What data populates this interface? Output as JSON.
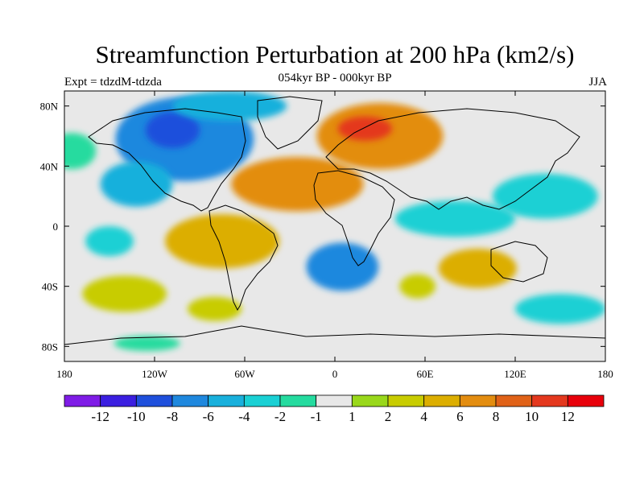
{
  "chart_data": {
    "type": "heatmap",
    "title": "Streamfunction Perturbation at 200 hPa (km2/s)",
    "subtitle": "054kyr BP - 000kyr BP",
    "left_label": "Expt = tdzdM-tdzda",
    "right_label": "JJA",
    "x_range": [
      -180,
      180
    ],
    "y_range": [
      -90,
      90
    ],
    "x_ticks": [
      {
        "label": "180",
        "value": -180
      },
      {
        "label": "120W",
        "value": -120
      },
      {
        "label": "60W",
        "value": -60
      },
      {
        "label": "0",
        "value": 0
      },
      {
        "label": "60E",
        "value": 60
      },
      {
        "label": "120E",
        "value": 120
      },
      {
        "label": "180",
        "value": 180
      }
    ],
    "y_ticks": [
      {
        "label": "80N",
        "value": 80
      },
      {
        "label": "40N",
        "value": 40
      },
      {
        "label": "0",
        "value": 0
      },
      {
        "label": "40S",
        "value": -40
      },
      {
        "label": "80S",
        "value": -80
      }
    ],
    "colorbar": {
      "levels": [
        "-12",
        "-10",
        "-8",
        "-6",
        "-4",
        "-2",
        "-1",
        "1",
        "2",
        "4",
        "6",
        "8",
        "10",
        "12"
      ],
      "colors": [
        "#7f1ce6",
        "#3b1fe0",
        "#1f50dc",
        "#1f88de",
        "#19b0dc",
        "#1ad0d4",
        "#25db9f",
        "#e8e8e8",
        "#99d81b",
        "#c8cc00",
        "#dcae00",
        "#e38d10",
        "#e06218",
        "#e4381e",
        "#e8000b"
      ]
    },
    "regions": [
      {
        "name": "north-america-negative",
        "lon": -100,
        "lat": 58,
        "rlon": 46,
        "rlat": 28,
        "value": -7
      },
      {
        "name": "north-america-core",
        "lon": -108,
        "lat": 64,
        "rlon": 18,
        "rlat": 12,
        "value": -9
      },
      {
        "name": "arctic-negative",
        "lon": -70,
        "lat": 80,
        "rlon": 38,
        "rlat": 10,
        "value": -5
      },
      {
        "name": "northeast-pacific-negative",
        "lon": -132,
        "lat": 28,
        "rlon": 24,
        "rlat": 15,
        "value": -6
      },
      {
        "name": "north-pacific-band",
        "lon": -175,
        "lat": 50,
        "rlon": 16,
        "rlat": 12,
        "value": -2
      },
      {
        "name": "west-pacific-band",
        "lon": 140,
        "lat": 20,
        "rlon": 35,
        "rlat": 15,
        "value": -4
      },
      {
        "name": "indian-ocean-band",
        "lon": 80,
        "lat": 5,
        "rlon": 40,
        "rlat": 12,
        "value": -3
      },
      {
        "name": "south-atlantic-negative",
        "lon": 5,
        "lat": -27,
        "rlon": 24,
        "rlat": 16,
        "value": -8
      },
      {
        "name": "southeast-pacific-negative",
        "lon": -150,
        "lat": -10,
        "rlon": 16,
        "rlat": 10,
        "value": -4
      },
      {
        "name": "southern-ocean-negative",
        "lon": 150,
        "lat": -55,
        "rlon": 30,
        "rlat": 10,
        "value": -3
      },
      {
        "name": "antarctic-negative",
        "lon": -125,
        "lat": -78,
        "rlon": 22,
        "rlat": 5,
        "value": -2
      },
      {
        "name": "europe-positive",
        "lon": 30,
        "lat": 60,
        "rlon": 42,
        "rlat": 22,
        "value": 7
      },
      {
        "name": "europe-core",
        "lon": 20,
        "lat": 65,
        "rlon": 18,
        "rlat": 8,
        "value": 10
      },
      {
        "name": "north-atlantic-positive",
        "lon": -25,
        "lat": 28,
        "rlon": 44,
        "rlat": 18,
        "value": 6
      },
      {
        "name": "south-america-positive",
        "lon": -75,
        "lat": -10,
        "rlon": 38,
        "rlat": 18,
        "value": 5
      },
      {
        "name": "australia-positive",
        "lon": 95,
        "lat": -28,
        "rlon": 26,
        "rlat": 13,
        "value": 5
      },
      {
        "name": "south-indian-positive",
        "lon": 55,
        "lat": -40,
        "rlon": 12,
        "rlat": 8,
        "value": 2
      },
      {
        "name": "southwest-pacific-positive",
        "lon": -140,
        "lat": -45,
        "rlon": 28,
        "rlat": 12,
        "value": 2
      },
      {
        "name": "south-pacific-positive",
        "lon": -80,
        "lat": -55,
        "rlon": 18,
        "rlat": 8,
        "value": 2
      }
    ]
  }
}
